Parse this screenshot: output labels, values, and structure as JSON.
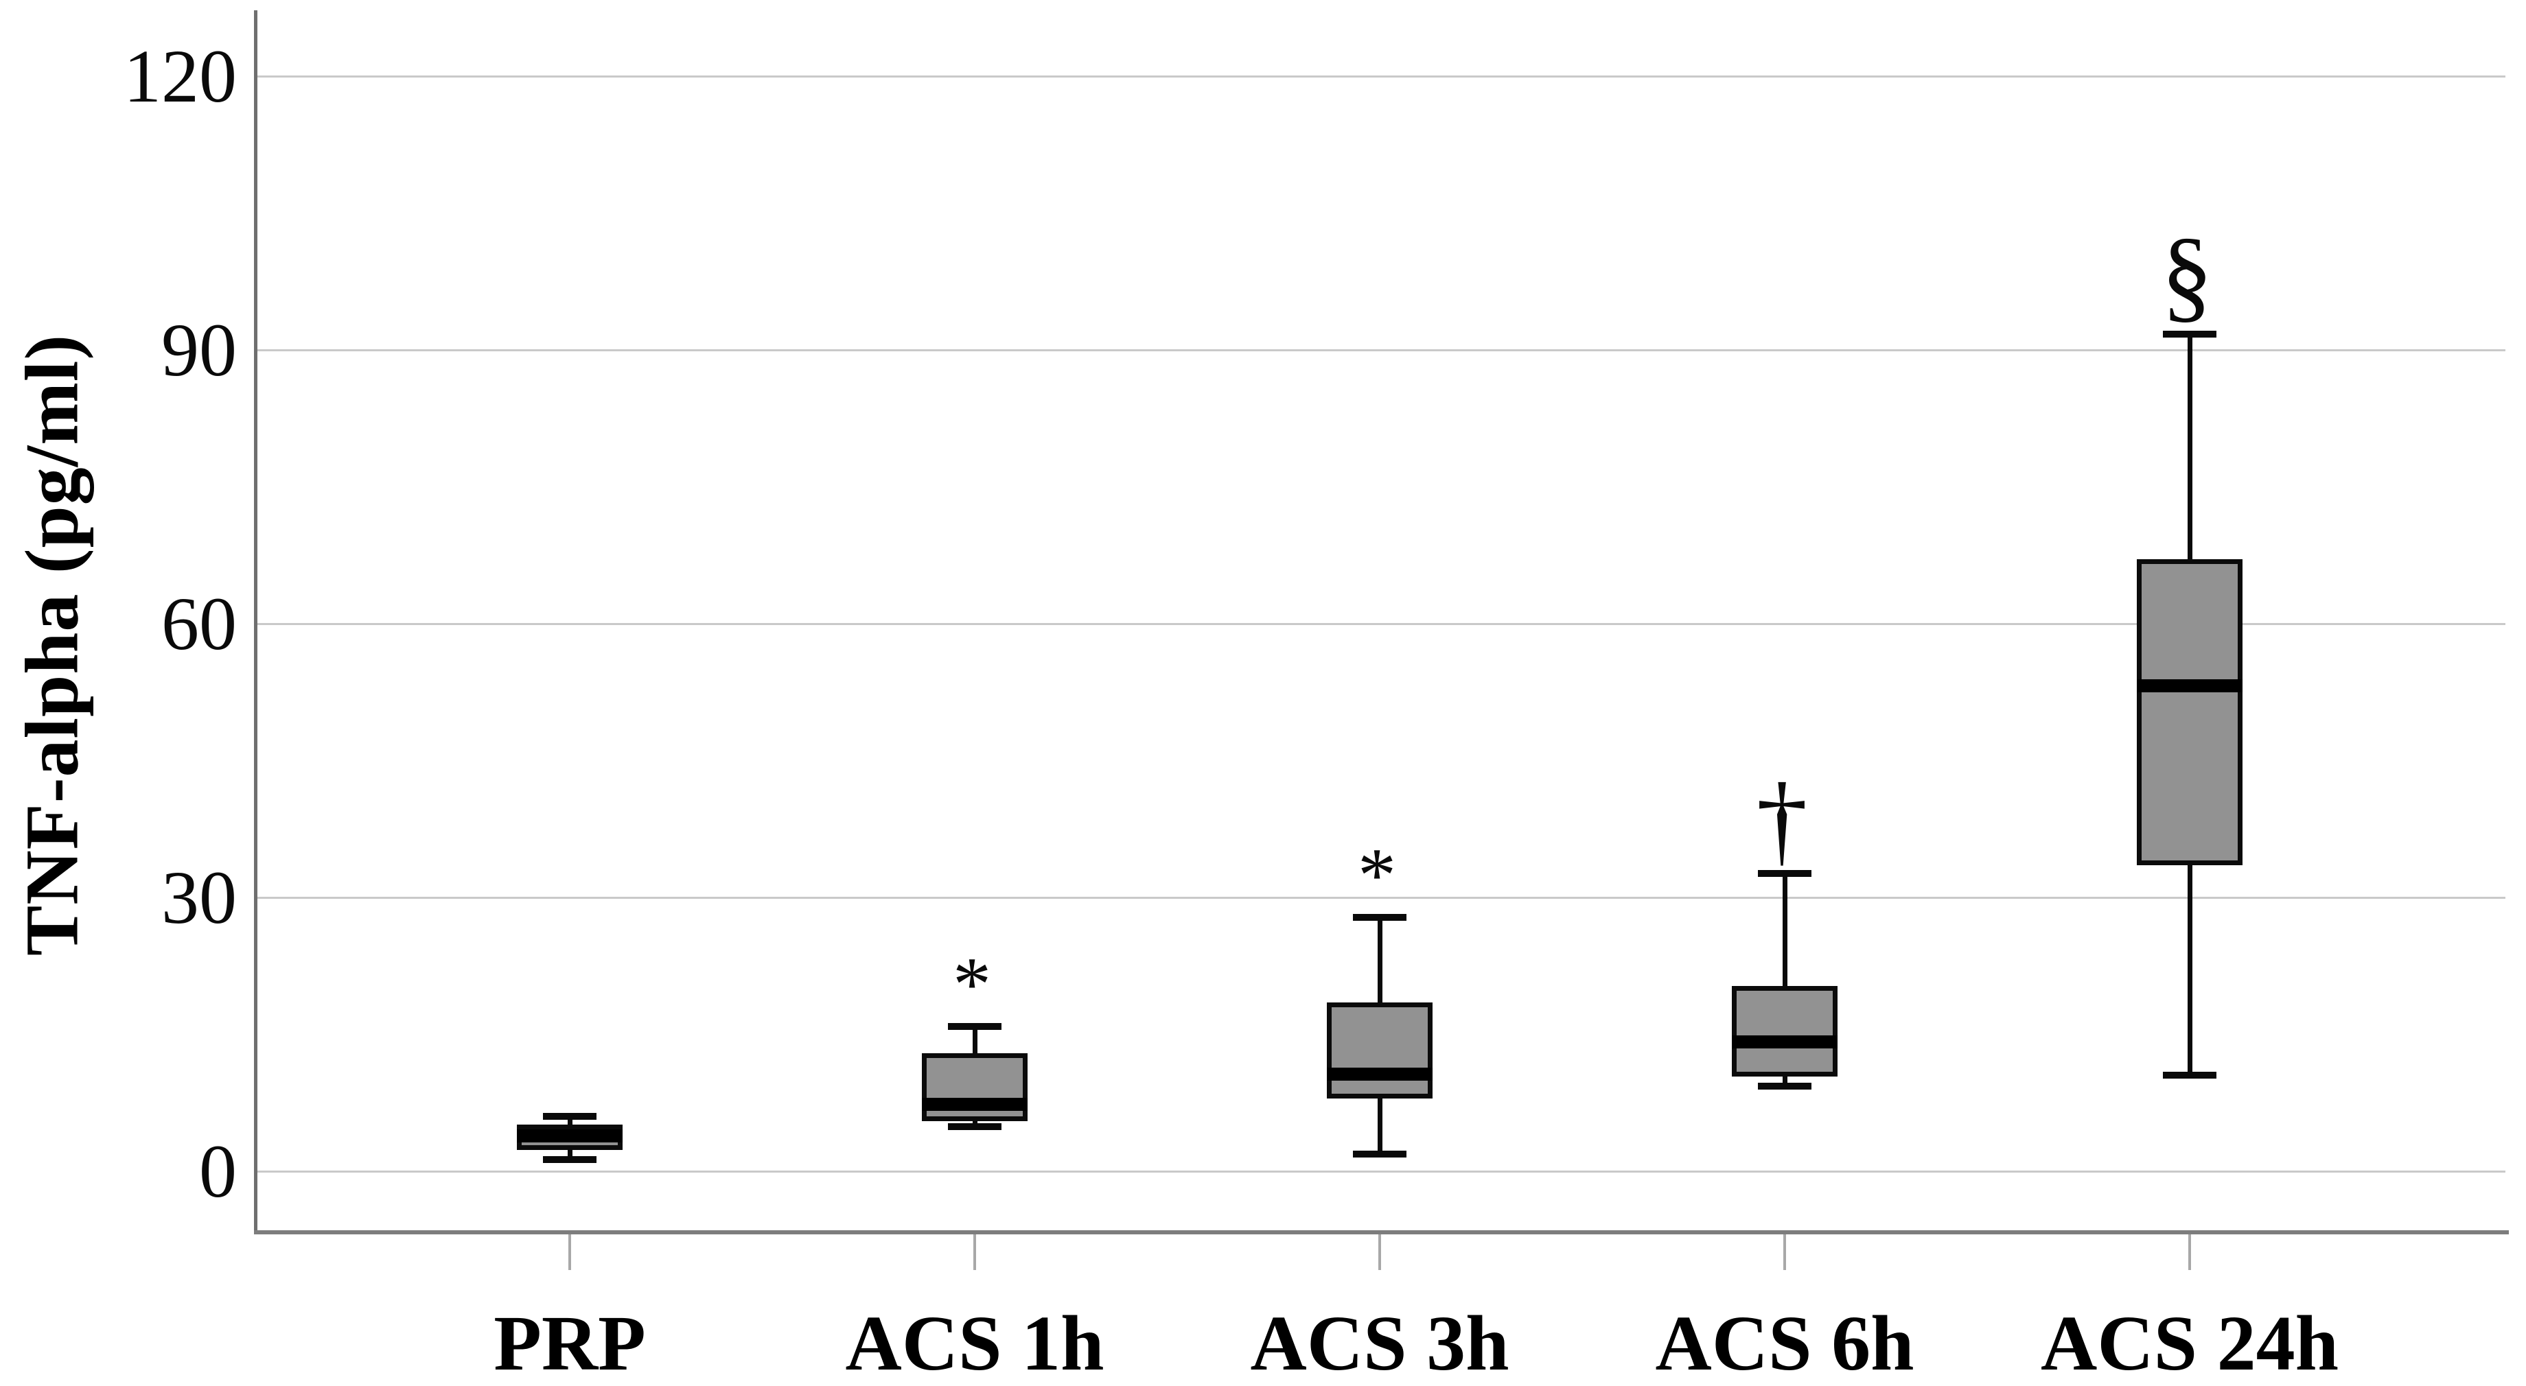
{
  "figure": {
    "background_color": "#ffffff",
    "box_fill_color": "#929292",
    "box_border_color": "#0b0b0b",
    "median_color": "#000000",
    "gridline_color": "#c9c9c9",
    "axis_line_color": "#6f6f6f"
  },
  "chart_data": {
    "type": "boxplot",
    "title": "",
    "xlabel": "",
    "ylabel": "TNF-alpha (pg/ml)",
    "categories": [
      "PRP",
      "ACS 1h",
      "ACS 3h",
      "ACS 6h",
      "ACS 24h"
    ],
    "y_ticks": [
      0,
      30,
      60,
      90,
      120
    ],
    "ylim": [
      -6.5,
      127
    ],
    "grid": "horizontal",
    "legend": "none",
    "series": [
      {
        "category": "PRP",
        "min": 1.3,
        "q1": 2.3,
        "median": 3.9,
        "q3": 5.1,
        "max": 6.0,
        "annotation": ""
      },
      {
        "category": "ACS 1h",
        "min": 4.9,
        "q1": 5.5,
        "median": 7.4,
        "q3": 12.9,
        "max": 15.9,
        "annotation": "*"
      },
      {
        "category": "ACS 3h",
        "min": 1.9,
        "q1": 8.0,
        "median": 10.7,
        "q3": 18.5,
        "max": 27.8,
        "annotation": "*"
      },
      {
        "category": "ACS 6h",
        "min": 9.3,
        "q1": 10.4,
        "median": 14.2,
        "q3": 20.3,
        "max": 32.6,
        "annotation": "†"
      },
      {
        "category": "ACS 24h",
        "min": 10.5,
        "q1": 33.5,
        "median": 53.2,
        "q3": 67.1,
        "max": 91.7,
        "annotation": "§"
      }
    ]
  }
}
